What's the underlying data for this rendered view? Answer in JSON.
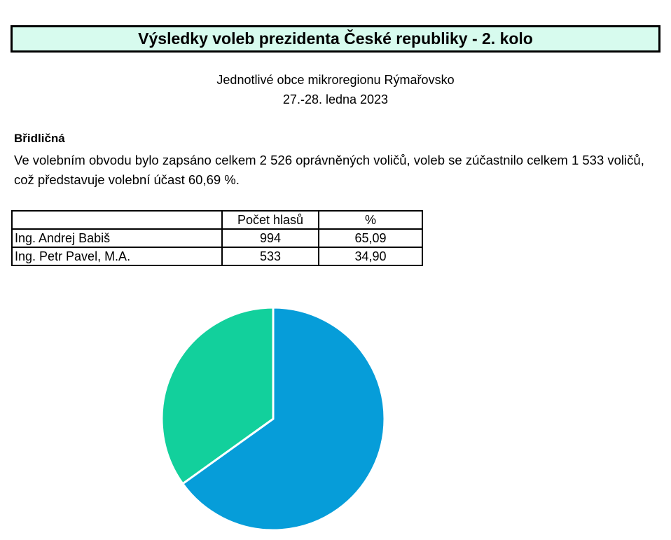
{
  "header": {
    "title": "Výsledky voleb prezidenta České republiky - 2. kolo",
    "subtitle": "Jednotlivé obce mikroregionu Rýmařovsko",
    "date": "27.-28. ledna 2023"
  },
  "municipality": {
    "name": "Břidličná",
    "description": "Ve volebním obvodu bylo zapsáno celkem 2 526 oprávněných voličů, voleb se zúčastnilo celkem 1 533 voličů, což představuje volební účast 60,69 %."
  },
  "table": {
    "headers": [
      "",
      "Počet hlasů",
      "%"
    ],
    "rows": [
      {
        "name": "Ing. Andrej Babiš",
        "votes": "994",
        "percent": "65,09"
      },
      {
        "name": "Ing. Petr Pavel, M.A.",
        "votes": "533",
        "percent": "34,90"
      }
    ]
  },
  "chart_data": {
    "type": "pie",
    "categories": [
      "Ing. Andrej Babiš",
      "Ing. Petr Pavel, M.A."
    ],
    "values": [
      65.09,
      34.9
    ],
    "colors": [
      "#069dd9",
      "#12d09c"
    ],
    "start": "12 o'clock, clockwise"
  }
}
